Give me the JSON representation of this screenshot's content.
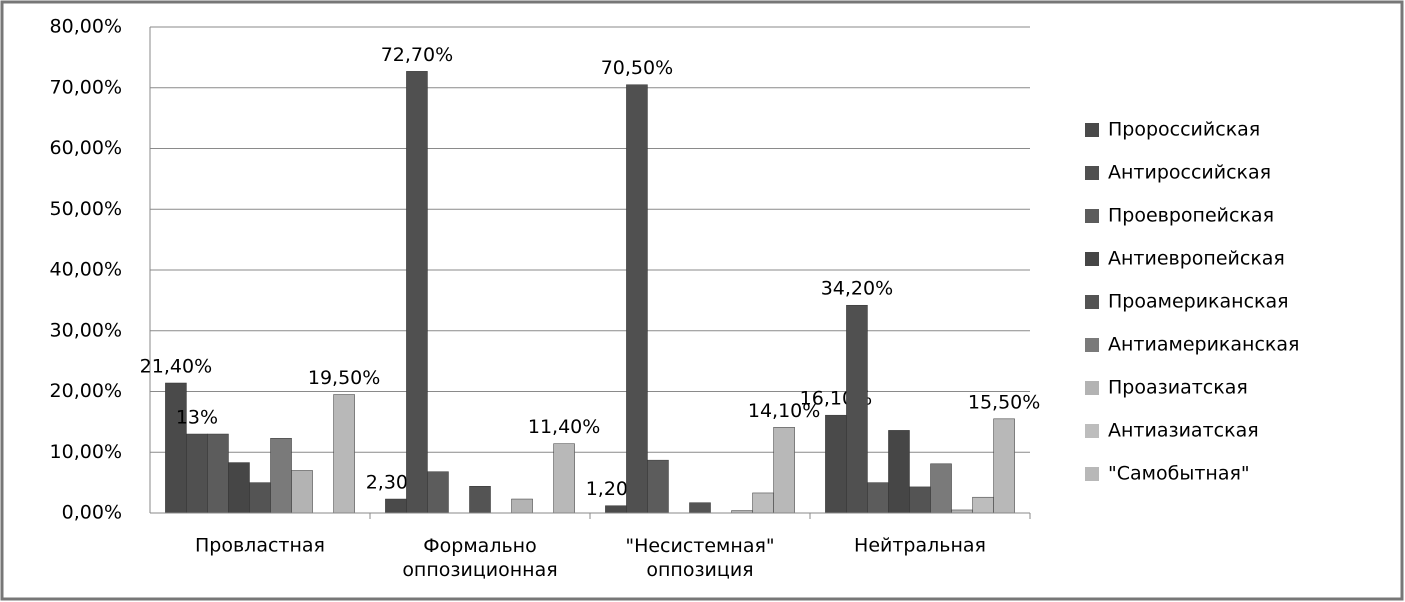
{
  "chart_data": {
    "type": "bar",
    "categories": [
      "Провластная",
      "Формально\nоппозиционная",
      "\"Несистемная\"\nоппозиция",
      "Нейтральная"
    ],
    "series": [
      {
        "name": "Пророссийская",
        "color": "#4a4a4a",
        "values": [
          21.4,
          2.3,
          1.2,
          16.1
        ],
        "value_labels": [
          "21,40%",
          "2,30%",
          "1,20%",
          "16,10%"
        ]
      },
      {
        "name": "Антироссийская",
        "color": "#505050",
        "values": [
          13,
          72.7,
          70.5,
          34.2
        ],
        "value_labels": [
          "13%",
          "72,70%",
          "70,50%",
          "34,20%"
        ]
      },
      {
        "name": "Проевропейская",
        "color": "#5c5c5c",
        "values": [
          13,
          6.8,
          8.7,
          5
        ]
      },
      {
        "name": "Антиевропейская",
        "color": "#464646",
        "values": [
          8.3,
          0,
          0,
          13.6
        ]
      },
      {
        "name": "Проамериканская",
        "color": "#545454",
        "values": [
          5,
          4.4,
          1.7,
          4.3
        ]
      },
      {
        "name": "Антиамериканская",
        "color": "#7a7a7a",
        "values": [
          12.3,
          0,
          0,
          8.1
        ]
      },
      {
        "name": "Проазиатская",
        "color": "#b3b3b3",
        "values": [
          7,
          2.3,
          0.4,
          0.5
        ]
      },
      {
        "name": "Антиазиатская",
        "color": "#bdbdbd",
        "values": [
          0,
          0,
          3.3,
          2.6
        ]
      },
      {
        "name": "\"Самобытная\"",
        "color": "#b8b8b8",
        "values": [
          19.5,
          11.4,
          14.1,
          15.5
        ],
        "value_labels": [
          "19,50%",
          "11,40%",
          "14,10%",
          "15,50%"
        ]
      }
    ],
    "ylim": [
      0,
      80
    ],
    "yticks": [
      {
        "value": 0,
        "label": "0,00%"
      },
      {
        "value": 10,
        "label": "10,00%"
      },
      {
        "value": 20,
        "label": "20,00%"
      },
      {
        "value": 30,
        "label": "30,00%"
      },
      {
        "value": 40,
        "label": "40,00%"
      },
      {
        "value": 50,
        "label": "50,00%"
      },
      {
        "value": 60,
        "label": "60,00%"
      },
      {
        "value": 70,
        "label": "70,00%"
      },
      {
        "value": 80,
        "label": "80,00%"
      }
    ],
    "grid": true,
    "legend": "right"
  }
}
